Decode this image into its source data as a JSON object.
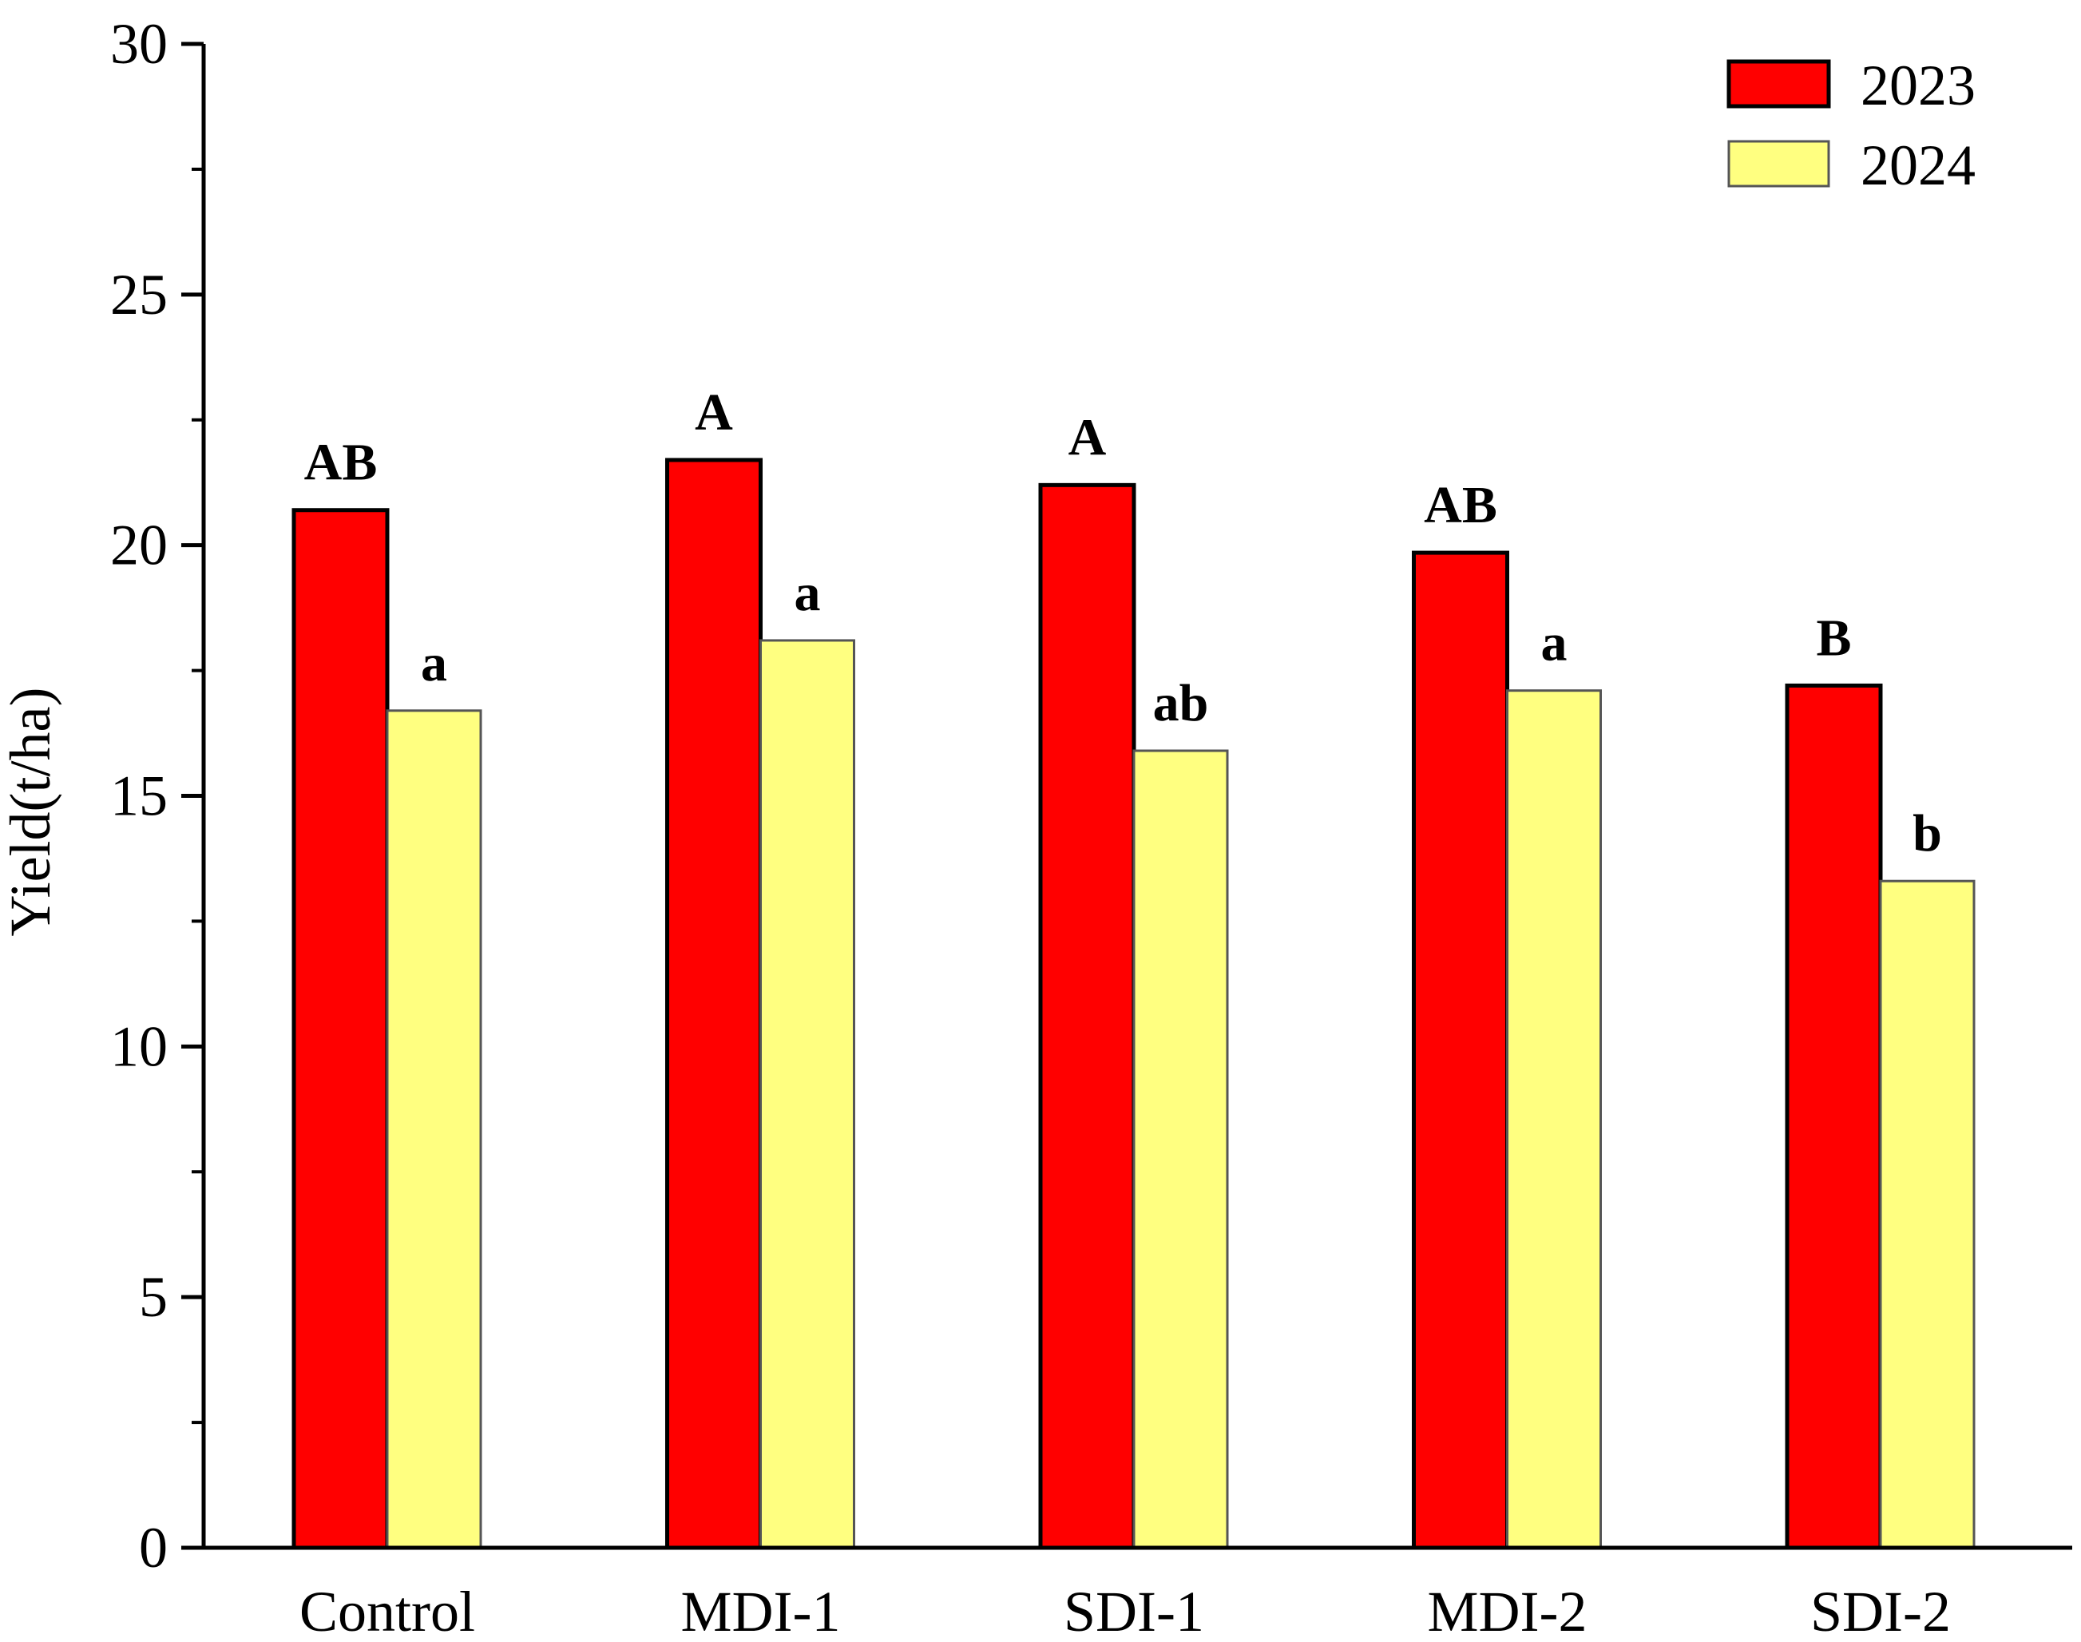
{
  "chart_data": {
    "type": "bar",
    "title": "",
    "xlabel": "",
    "ylabel": "Yield(t/ha)",
    "ylim": [
      0,
      30
    ],
    "yticks": [
      0,
      5,
      10,
      15,
      20,
      25,
      30
    ],
    "ytick_labels": [
      "0",
      "5",
      "10",
      "15",
      "20",
      "25",
      "30"
    ],
    "categories": [
      "Control",
      "MDI-1",
      "SDI-1",
      "MDI-2",
      "SDI-2"
    ],
    "series": [
      {
        "name": "2023",
        "color": "#ff0000",
        "values": [
          20.7,
          21.7,
          21.2,
          19.85,
          17.2
        ],
        "labels": [
          "AB",
          "A",
          "A",
          "AB",
          "B"
        ]
      },
      {
        "name": "2024",
        "color": "#ffff80",
        "values": [
          16.7,
          18.1,
          15.9,
          17.1,
          13.3
        ],
        "labels": [
          "a",
          "a",
          "ab",
          "a",
          "b"
        ]
      }
    ],
    "legend": {
      "position": "top-right"
    },
    "grid": false
  }
}
